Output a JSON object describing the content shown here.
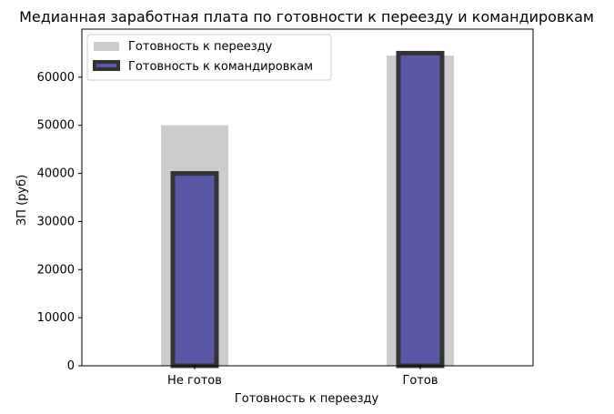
{
  "chart_data": {
    "type": "bar",
    "title": "Медианная заработная плата по готовности к переезду и командировкам",
    "xlabel": "Готовность к переезду",
    "ylabel": "ЗП (руб)",
    "categories": [
      "Не готов",
      "Готов"
    ],
    "ylim": [
      0,
      70000
    ],
    "yticks": [
      0,
      10000,
      20000,
      30000,
      40000,
      50000,
      60000
    ],
    "grid": false,
    "legend_position": "top-left",
    "series": [
      {
        "name": "Готовность к переезду",
        "values": [
          50000,
          64500
        ],
        "color": "#cccccc"
      },
      {
        "name": "Готовность к командировкам",
        "values": [
          40000,
          65000
        ],
        "color": "#5a58a6",
        "edge_color": "#333333"
      }
    ]
  }
}
